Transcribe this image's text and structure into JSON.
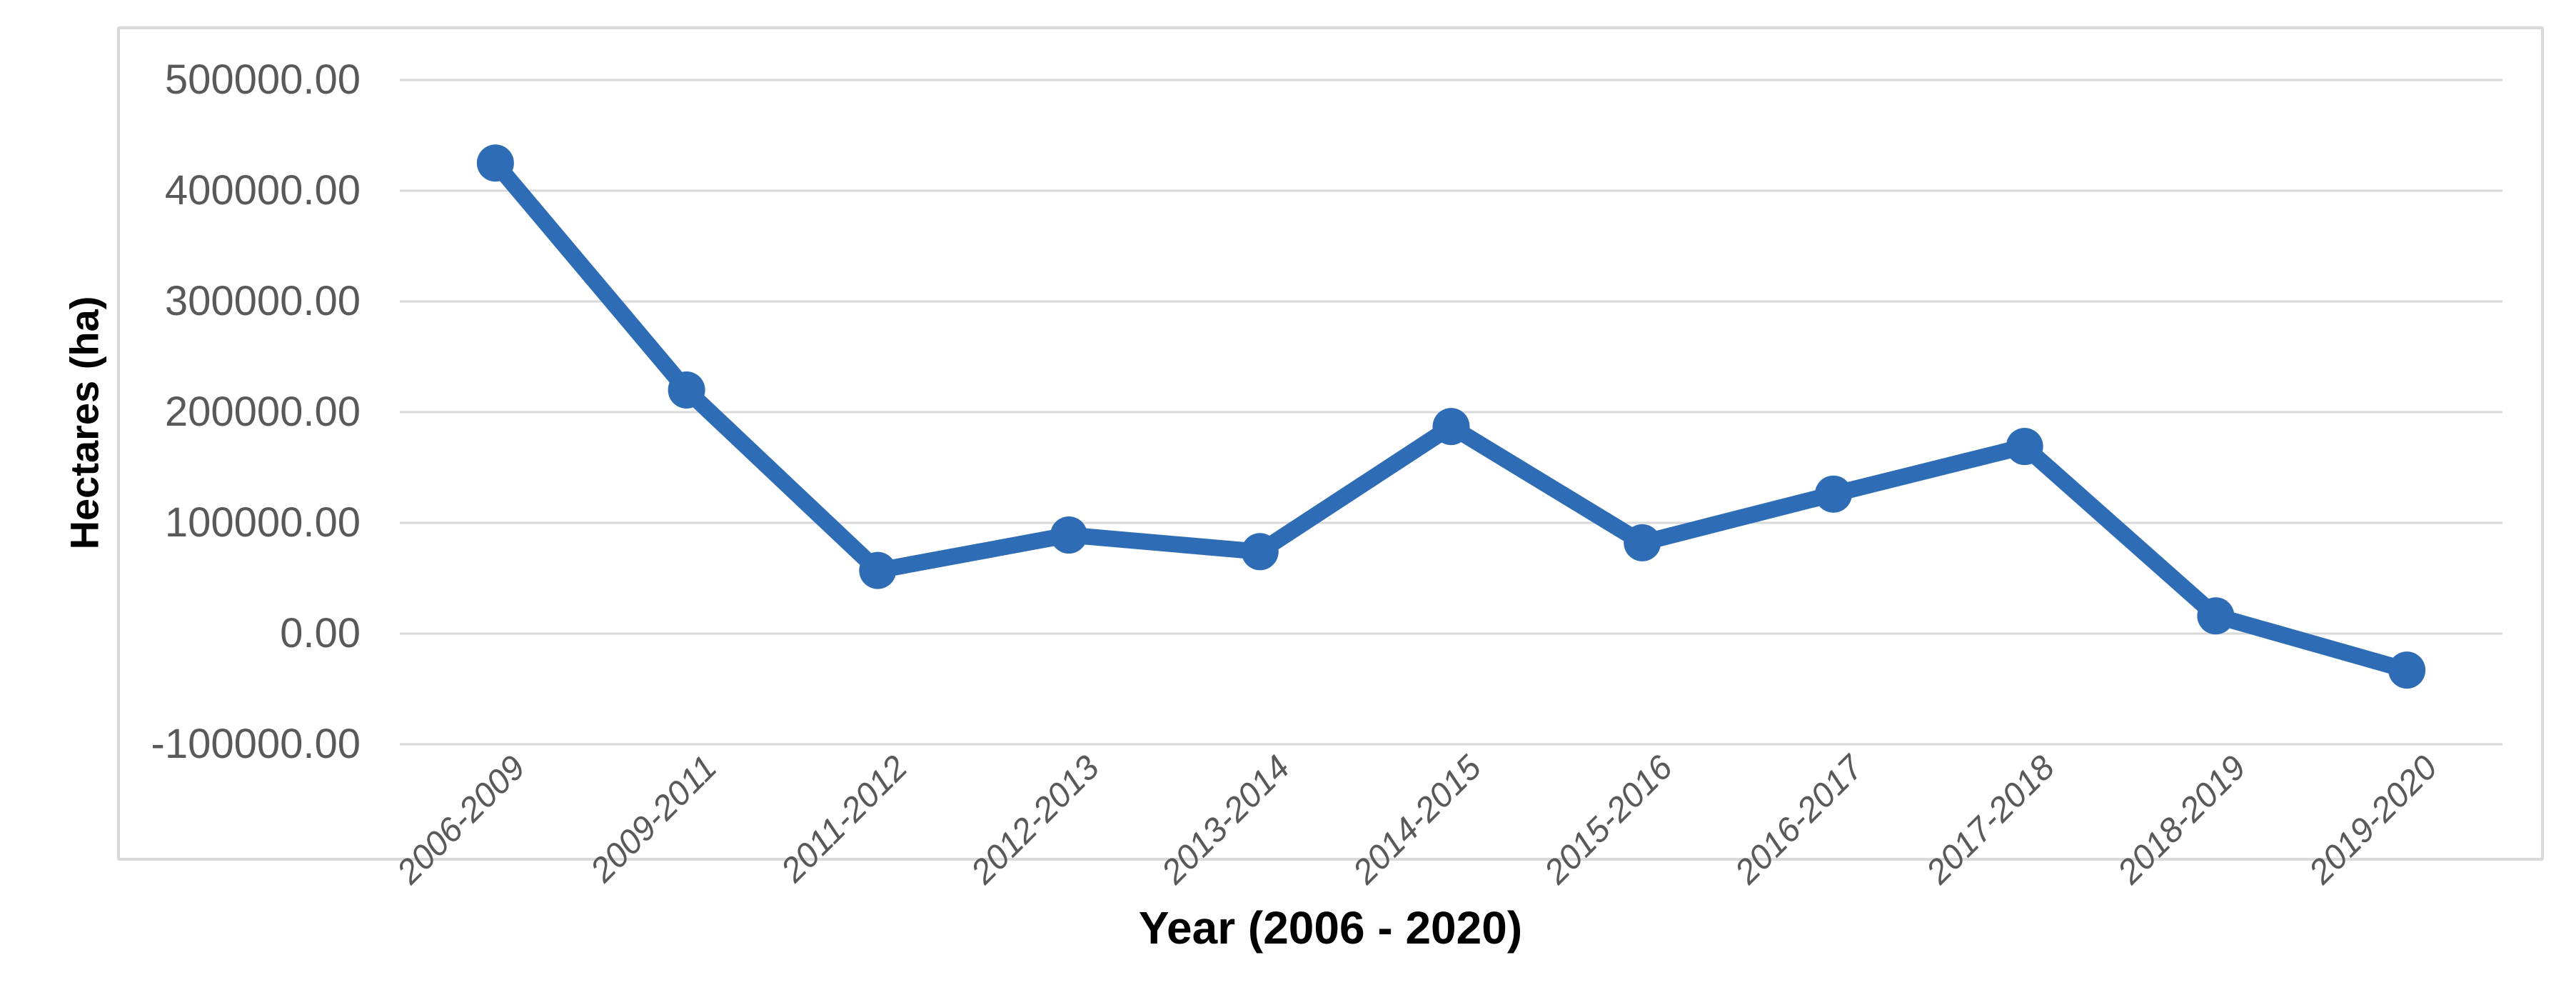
{
  "chart_data": {
    "type": "line",
    "categories": [
      "2006-2009",
      "2009-2011",
      "2011-2012",
      "2012-2013",
      "2013-2014",
      "2014-2015",
      "2015-2016",
      "2016-2017",
      "2017-2018",
      "2018-2019",
      "2019-2020"
    ],
    "values": [
      425000,
      220000,
      57000,
      89000,
      74000,
      187000,
      82000,
      126000,
      169000,
      16000,
      -33000
    ],
    "xlabel": "Year (2006 - 2020)",
    "ylabel": "Hectares (ha)",
    "ylim": [
      -100000,
      500000
    ],
    "ytick_step": 100000,
    "ytick_labels": [
      "500000.00",
      "400000.00",
      "300000.00",
      "200000.00",
      "100000.00",
      "0.00",
      "-100000.00"
    ],
    "grid": true,
    "legend": "none",
    "marker": "circle"
  },
  "colors": {
    "line": "#2e6db5",
    "gridline": "#d9d9d9",
    "frame_border": "#d9d9d9",
    "tick_label": "#595959",
    "axis_title": "#000000",
    "background": "#ffffff"
  }
}
